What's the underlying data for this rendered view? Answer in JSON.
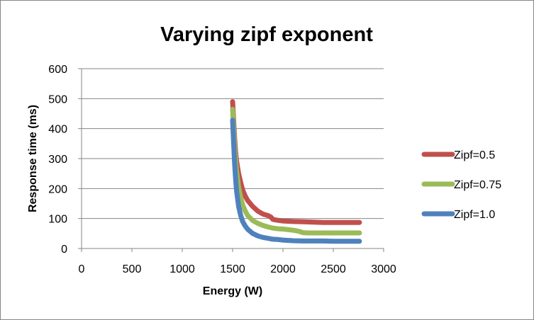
{
  "chart_data": {
    "type": "line",
    "title": "Varying zipf exponent",
    "xlabel": "Energy (W)",
    "ylabel": "Response time (ms)",
    "xlim": [
      0,
      3000
    ],
    "ylim": [
      0,
      600
    ],
    "xticks": [
      0,
      500,
      1000,
      1500,
      2000,
      2500,
      3000
    ],
    "yticks": [
      0,
      100,
      200,
      300,
      400,
      500,
      600
    ],
    "grid": "horizontal major gridlines",
    "legend_position": "right",
    "series": [
      {
        "name": "Zipf=0.5",
        "color": "#c0504d",
        "x": [
          1500,
          1510,
          1520,
          1530,
          1540,
          1560,
          1580,
          1600,
          1625,
          1650,
          1700,
          1750,
          1800,
          1850,
          1880,
          1900,
          1950,
          2000,
          2100,
          2200,
          2300,
          2400,
          2500,
          2600,
          2760
        ],
        "y": [
          490,
          430,
          370,
          320,
          290,
          250,
          220,
          195,
          175,
          160,
          140,
          125,
          115,
          110,
          105,
          97,
          94,
          92,
          90,
          89,
          88,
          87,
          87,
          87,
          87
        ]
      },
      {
        "name": "Zipf=0.75",
        "color": "#9bbb59",
        "x": [
          1500,
          1510,
          1520,
          1530,
          1540,
          1560,
          1580,
          1600,
          1625,
          1650,
          1700,
          1750,
          1800,
          1850,
          1900,
          1950,
          2000,
          2100,
          2150,
          2200,
          2250,
          2300,
          2400,
          2500,
          2760
        ],
        "y": [
          465,
          405,
          340,
          290,
          255,
          205,
          170,
          145,
          125,
          110,
          93,
          84,
          77,
          72,
          68,
          66,
          65,
          61,
          58,
          53,
          52,
          52,
          52,
          52,
          52
        ]
      },
      {
        "name": "Zipf=1.0",
        "color": "#4f81bd",
        "x": [
          1500,
          1510,
          1520,
          1530,
          1540,
          1560,
          1580,
          1600,
          1625,
          1650,
          1700,
          1750,
          1800,
          1850,
          1900,
          1950,
          2000,
          2100,
          2200,
          2300,
          2400,
          2500,
          2600,
          2760
        ],
        "y": [
          428,
          355,
          285,
          230,
          190,
          140,
          110,
          90,
          75,
          64,
          50,
          42,
          37,
          34,
          31,
          30,
          28,
          26,
          25,
          25,
          25,
          24,
          24,
          24
        ]
      }
    ]
  }
}
